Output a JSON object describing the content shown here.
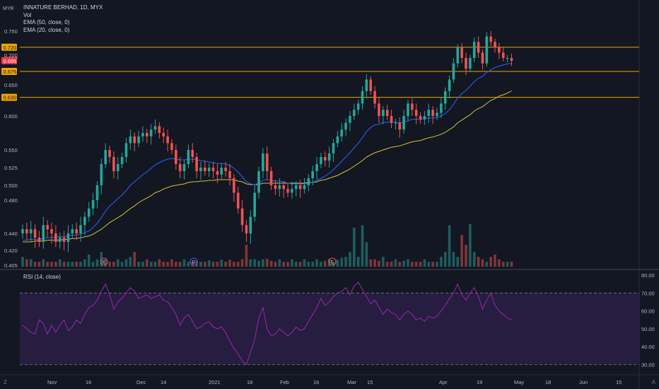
{
  "header": {
    "symbol_line": "INNATURE BERHAD, 1D, MYX",
    "indicators": [
      "Vol",
      "EMA (50, close, 0)",
      "EMA (20, close, 0)"
    ],
    "currency": "MYR",
    "rsi_label": "RSI (14, close)",
    "corner_left": "Z",
    "corner_right": "A"
  },
  "colors": {
    "background": "#131722",
    "up": "#26a69a",
    "down": "#ef5350",
    "ema20": "#2962ff",
    "ema50": "#d4c23a",
    "hline": "#f0a500",
    "rsi": "#9c27b0"
  },
  "chart_data": [
    {
      "type": "candlestick",
      "yticks": [
        0.75,
        0.7,
        0.65,
        0.6,
        0.55,
        0.525,
        0.5,
        0.48,
        0.44,
        0.42,
        0.405
      ],
      "ytick_labels": [
        "0.750",
        "0.700",
        "0.650",
        "0.600",
        "0.550",
        "0.525",
        "0.500",
        "0.480",
        "0.440",
        "0.420",
        "0.405"
      ],
      "ylim": [
        0.4,
        0.77
      ],
      "xtick_labels": [
        "Nov",
        "16",
        "Dec",
        "14",
        "2021",
        "18",
        "Feb",
        "16",
        "Mar",
        "15",
        "Apr",
        "19",
        "May",
        "18",
        "Jun",
        "15"
      ],
      "horizontal_levels": [
        {
          "value": 0.72,
          "label": "0.720"
        },
        {
          "value": 0.675,
          "label": "0.675"
        },
        {
          "value": 0.63,
          "label": "0.630"
        }
      ],
      "last_price": {
        "value": 0.695,
        "label": "0.695"
      },
      "overlapped_label": "0.700",
      "closes": [
        0.445,
        0.44,
        0.445,
        0.435,
        0.43,
        0.45,
        0.445,
        0.44,
        0.43,
        0.435,
        0.43,
        0.44,
        0.445,
        0.44,
        0.45,
        0.46,
        0.47,
        0.48,
        0.5,
        0.53,
        0.55,
        0.54,
        0.52,
        0.53,
        0.54,
        0.56,
        0.57,
        0.56,
        0.57,
        0.575,
        0.57,
        0.58,
        0.585,
        0.575,
        0.57,
        0.56,
        0.55,
        0.53,
        0.52,
        0.53,
        0.55,
        0.54,
        0.52,
        0.525,
        0.52,
        0.525,
        0.52,
        0.515,
        0.525,
        0.52,
        0.51,
        0.49,
        0.47,
        0.45,
        0.44,
        0.46,
        0.49,
        0.52,
        0.545,
        0.52,
        0.5,
        0.495,
        0.5,
        0.495,
        0.49,
        0.495,
        0.5,
        0.495,
        0.5,
        0.51,
        0.52,
        0.53,
        0.54,
        0.535,
        0.545,
        0.56,
        0.57,
        0.58,
        0.59,
        0.6,
        0.61,
        0.62,
        0.64,
        0.66,
        0.64,
        0.62,
        0.6,
        0.61,
        0.6,
        0.59,
        0.59,
        0.58,
        0.6,
        0.62,
        0.61,
        0.6,
        0.595,
        0.6,
        0.61,
        0.6,
        0.605,
        0.62,
        0.64,
        0.66,
        0.69,
        0.72,
        0.7,
        0.68,
        0.7,
        0.73,
        0.71,
        0.69,
        0.74,
        0.73,
        0.72,
        0.71,
        0.7,
        0.7,
        0.695
      ],
      "volumes": [
        2,
        1.5,
        1.5,
        1,
        1,
        1.5,
        1,
        1,
        1,
        1.5,
        1,
        1,
        1,
        1,
        1,
        1.5,
        2.5,
        1,
        1.5,
        3,
        1.5,
        1,
        1,
        1.5,
        1,
        1.5,
        2,
        3,
        1,
        1,
        1.5,
        1,
        1,
        1.5,
        1,
        1,
        1.5,
        1,
        1,
        1.5,
        1,
        1,
        1.2,
        1,
        1,
        1.3,
        1,
        1,
        1.4,
        1,
        1.4,
        1,
        1,
        1.5,
        4.5,
        1.5,
        1.5,
        1.2,
        1.5,
        1.6,
        1.2,
        1,
        1.5,
        1,
        1,
        1.5,
        1,
        1,
        1.5,
        1,
        1,
        1.5,
        1,
        1.2,
        1.6,
        1,
        1.4,
        1.8,
        2,
        3,
        8,
        2,
        8.5,
        5,
        1.5,
        1.5,
        1.2,
        2,
        1,
        1,
        1.5,
        1,
        1.2,
        1.5,
        1,
        1,
        1,
        1.5,
        1,
        1,
        1,
        2,
        3,
        8.5,
        3,
        2,
        6.5,
        4.5,
        8.7,
        3,
        2,
        1.5,
        1,
        2,
        2.5,
        1.5,
        1,
        1,
        1
      ],
      "ema20": [
        0.432,
        0.432,
        0.433,
        0.433,
        0.433,
        0.434,
        0.435,
        0.435,
        0.436,
        0.436,
        0.436,
        0.437,
        0.438,
        0.438,
        0.439,
        0.441,
        0.443,
        0.447,
        0.452,
        0.459,
        0.467,
        0.473,
        0.477,
        0.482,
        0.487,
        0.493,
        0.5,
        0.505,
        0.51,
        0.515,
        0.519,
        0.524,
        0.529,
        0.532,
        0.535,
        0.537,
        0.538,
        0.537,
        0.536,
        0.536,
        0.537,
        0.537,
        0.536,
        0.535,
        0.534,
        0.533,
        0.532,
        0.531,
        0.531,
        0.53,
        0.528,
        0.524,
        0.519,
        0.512,
        0.505,
        0.502,
        0.501,
        0.503,
        0.507,
        0.508,
        0.507,
        0.506,
        0.506,
        0.505,
        0.503,
        0.502,
        0.502,
        0.502,
        0.502,
        0.503,
        0.504,
        0.507,
        0.51,
        0.513,
        0.517,
        0.522,
        0.528,
        0.534,
        0.54,
        0.546,
        0.553,
        0.56,
        0.568,
        0.577,
        0.583,
        0.587,
        0.588,
        0.59,
        0.591,
        0.591,
        0.591,
        0.59,
        0.591,
        0.593,
        0.595,
        0.595,
        0.595,
        0.596,
        0.597,
        0.597,
        0.598,
        0.6,
        0.604,
        0.61,
        0.619,
        0.629,
        0.636,
        0.641,
        0.648,
        0.656,
        0.662,
        0.666,
        0.673,
        0.678,
        0.682,
        0.685,
        0.687,
        0.689,
        0.69
      ],
      "ema50": [
        0.43,
        0.43,
        0.43,
        0.431,
        0.431,
        0.431,
        0.432,
        0.432,
        0.432,
        0.432,
        0.433,
        0.433,
        0.434,
        0.434,
        0.435,
        0.436,
        0.437,
        0.439,
        0.442,
        0.445,
        0.449,
        0.453,
        0.456,
        0.459,
        0.462,
        0.466,
        0.47,
        0.473,
        0.477,
        0.48,
        0.483,
        0.486,
        0.49,
        0.492,
        0.495,
        0.497,
        0.499,
        0.5,
        0.501,
        0.502,
        0.504,
        0.505,
        0.505,
        0.506,
        0.506,
        0.507,
        0.507,
        0.508,
        0.508,
        0.508,
        0.508,
        0.508,
        0.506,
        0.505,
        0.502,
        0.501,
        0.501,
        0.501,
        0.503,
        0.503,
        0.503,
        0.503,
        0.503,
        0.503,
        0.503,
        0.503,
        0.503,
        0.503,
        0.503,
        0.504,
        0.504,
        0.505,
        0.507,
        0.508,
        0.51,
        0.512,
        0.514,
        0.517,
        0.52,
        0.523,
        0.527,
        0.531,
        0.535,
        0.54,
        0.543,
        0.546,
        0.548,
        0.55,
        0.552,
        0.554,
        0.555,
        0.556,
        0.558,
        0.56,
        0.562,
        0.563,
        0.564,
        0.566,
        0.568,
        0.569,
        0.571,
        0.573,
        0.576,
        0.58,
        0.584,
        0.59,
        0.594,
        0.598,
        0.602,
        0.608,
        0.612,
        0.615,
        0.62,
        0.625,
        0.628,
        0.632,
        0.634,
        0.637,
        0.64
      ]
    },
    {
      "type": "line",
      "title": "RSI (14, close)",
      "yticks": [
        80,
        70,
        60,
        50,
        40,
        30
      ],
      "ytick_labels": [
        "80.00",
        "70.00",
        "60.00",
        "50.00",
        "40.00",
        "30.00"
      ],
      "ylim": [
        25,
        82
      ],
      "bands": [
        70,
        30
      ],
      "values": [
        52,
        50,
        48,
        47,
        55,
        53,
        47,
        52,
        48,
        52,
        55,
        49,
        51,
        55,
        53,
        58,
        62,
        63,
        66,
        71,
        75,
        69,
        61,
        65,
        67,
        70,
        73,
        71,
        67,
        68,
        69,
        67,
        68,
        69,
        66,
        65,
        62,
        58,
        52,
        56,
        58,
        54,
        50,
        51,
        53,
        54,
        51,
        50,
        51,
        48,
        43,
        39,
        36,
        32,
        30,
        37,
        44,
        56,
        62,
        50,
        46,
        47,
        50,
        48,
        46,
        48,
        51,
        49,
        50,
        54,
        58,
        62,
        67,
        63,
        65,
        68,
        70,
        71,
        73,
        69,
        74,
        76,
        72,
        68,
        64,
        66,
        62,
        58,
        61,
        59,
        58,
        55,
        58,
        60,
        58,
        55,
        56,
        54,
        57,
        56,
        57,
        60,
        63,
        67,
        70,
        75,
        69,
        66,
        70,
        73,
        68,
        61,
        66,
        70,
        63,
        60,
        58,
        56,
        55
      ]
    }
  ]
}
